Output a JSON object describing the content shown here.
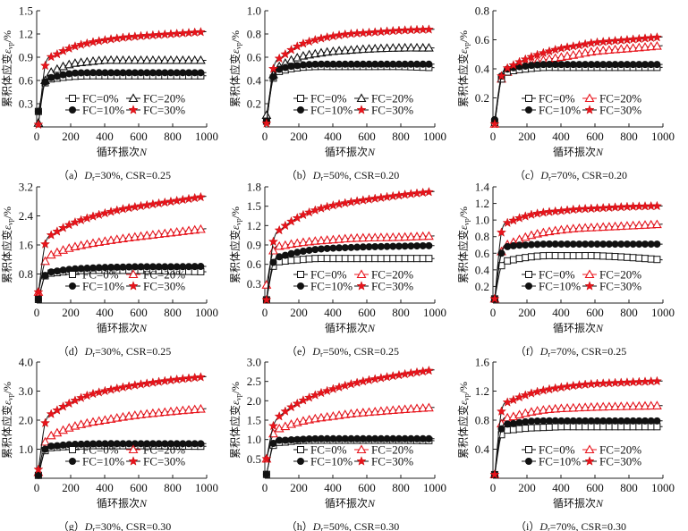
{
  "labels": {
    "ylabel_main": "累积体应变",
    "ylabel_sym": "ε",
    "ylabel_sub": "vp",
    "ylabel_unit": "/%",
    "xlabel_main": "循环振次",
    "xlabel_sym": "N"
  },
  "colors": {
    "line": "#111111",
    "red": "#e8141c",
    "black": "#111111"
  },
  "legend": [
    "FC=0%",
    "FC=10%",
    "FC=20%",
    "FC=30%"
  ],
  "markers": [
    "square-open",
    "circle-filled",
    "triangle-open",
    "star-filled"
  ],
  "chart_data": [
    {
      "type": "line",
      "panel": "a",
      "caption": {
        "letter": "a",
        "dr": "=30%, CSR=0.25"
      },
      "ylim": [
        0,
        1.5
      ],
      "yticks": [
        0.3,
        0.6,
        0.9,
        1.2,
        1.5
      ],
      "xlim": [
        0,
        1000
      ],
      "xticks": [
        0,
        200,
        400,
        600,
        800,
        1000
      ],
      "triangle_color": "black",
      "x": [
        10,
        50,
        100,
        200,
        300,
        400,
        500,
        600,
        800,
        1000
      ],
      "series": [
        {
          "name": "FC=0%",
          "values": [
            0.2,
            0.57,
            0.62,
            0.65,
            0.66,
            0.66,
            0.66,
            0.66,
            0.66,
            0.66
          ]
        },
        {
          "name": "FC=10%",
          "values": [
            0.2,
            0.58,
            0.64,
            0.69,
            0.7,
            0.7,
            0.7,
            0.7,
            0.7,
            0.7
          ]
        },
        {
          "name": "FC=20%",
          "values": [
            0.05,
            0.6,
            0.72,
            0.81,
            0.84,
            0.86,
            0.86,
            0.86,
            0.86,
            0.86
          ]
        },
        {
          "name": "FC=30%",
          "values": [
            0.03,
            0.79,
            0.91,
            1.02,
            1.08,
            1.12,
            1.15,
            1.17,
            1.2,
            1.23
          ]
        }
      ]
    },
    {
      "type": "line",
      "panel": "b",
      "caption": {
        "letter": "b",
        "dr": "=50%, CSR=0.20"
      },
      "ylim": [
        0,
        1.0
      ],
      "yticks": [
        0.2,
        0.4,
        0.6,
        0.8,
        1.0
      ],
      "xlim": [
        0,
        1000
      ],
      "xticks": [
        0,
        200,
        400,
        600,
        800,
        1000
      ],
      "triangle_color": "black",
      "x": [
        10,
        50,
        100,
        200,
        300,
        400,
        500,
        600,
        800,
        1000
      ],
      "series": [
        {
          "name": "FC=0%",
          "values": [
            0.05,
            0.42,
            0.48,
            0.51,
            0.52,
            0.52,
            0.52,
            0.52,
            0.52,
            0.51
          ]
        },
        {
          "name": "FC=10%",
          "values": [
            0.05,
            0.43,
            0.5,
            0.53,
            0.54,
            0.54,
            0.54,
            0.54,
            0.54,
            0.54
          ]
        },
        {
          "name": "FC=20%",
          "values": [
            0.1,
            0.45,
            0.53,
            0.6,
            0.63,
            0.65,
            0.66,
            0.67,
            0.68,
            0.68
          ]
        },
        {
          "name": "FC=30%",
          "values": [
            0.03,
            0.5,
            0.6,
            0.7,
            0.75,
            0.78,
            0.8,
            0.81,
            0.83,
            0.84
          ]
        }
      ]
    },
    {
      "type": "line",
      "panel": "c",
      "caption": {
        "letter": "c",
        "dr": "=70%, CSR=0.20"
      },
      "ylim": [
        0,
        0.8
      ],
      "yticks": [
        0.2,
        0.4,
        0.6,
        0.8
      ],
      "xlim": [
        0,
        1000
      ],
      "xticks": [
        0,
        200,
        400,
        600,
        800,
        1000
      ],
      "triangle_color": "red",
      "x": [
        10,
        50,
        100,
        200,
        300,
        400,
        500,
        600,
        800,
        1000
      ],
      "series": [
        {
          "name": "FC=0%",
          "values": [
            0.03,
            0.33,
            0.38,
            0.4,
            0.41,
            0.41,
            0.41,
            0.41,
            0.41,
            0.41
          ]
        },
        {
          "name": "FC=10%",
          "values": [
            0.05,
            0.35,
            0.4,
            0.42,
            0.43,
            0.43,
            0.43,
            0.43,
            0.43,
            0.43
          ]
        },
        {
          "name": "FC=20%",
          "values": [
            0.02,
            0.33,
            0.38,
            0.43,
            0.46,
            0.48,
            0.5,
            0.52,
            0.54,
            0.56
          ]
        },
        {
          "name": "FC=30%",
          "values": [
            0.02,
            0.35,
            0.41,
            0.47,
            0.51,
            0.54,
            0.56,
            0.58,
            0.6,
            0.62
          ]
        }
      ]
    },
    {
      "type": "line",
      "panel": "d",
      "caption": {
        "letter": "d",
        "dr": "=30%, CSR=0.25"
      },
      "ylim": [
        0,
        3.2
      ],
      "yticks": [
        0.8,
        1.6,
        2.4,
        3.2
      ],
      "xlim": [
        0,
        1000
      ],
      "xticks": [
        0,
        200,
        400,
        600,
        800,
        1000
      ],
      "triangle_color": "red",
      "x": [
        10,
        50,
        100,
        200,
        300,
        400,
        500,
        600,
        800,
        1000
      ],
      "series": [
        {
          "name": "FC=0%",
          "values": [
            0.1,
            0.75,
            0.82,
            0.88,
            0.9,
            0.9,
            0.9,
            0.9,
            0.88,
            0.86
          ]
        },
        {
          "name": "FC=10%",
          "values": [
            0.1,
            0.76,
            0.86,
            0.93,
            0.96,
            0.98,
            0.99,
            1.0,
            1.0,
            1.01
          ]
        },
        {
          "name": "FC=20%",
          "values": [
            0.3,
            1.15,
            1.35,
            1.52,
            1.62,
            1.7,
            1.77,
            1.83,
            1.94,
            2.05
          ]
        },
        {
          "name": "FC=30%",
          "values": [
            0.3,
            1.62,
            1.9,
            2.17,
            2.34,
            2.47,
            2.58,
            2.66,
            2.8,
            2.94
          ]
        }
      ]
    },
    {
      "type": "line",
      "panel": "e",
      "caption": {
        "letter": "e",
        "dr": "=50%, CSR=0.25"
      },
      "ylim": [
        0,
        1.8
      ],
      "yticks": [
        0.3,
        0.6,
        0.9,
        1.2,
        1.5,
        1.8
      ],
      "xlim": [
        0,
        1000
      ],
      "xticks": [
        0,
        200,
        400,
        600,
        800,
        1000
      ],
      "triangle_color": "red",
      "x": [
        10,
        50,
        100,
        200,
        300,
        400,
        500,
        600,
        800,
        1000
      ],
      "series": [
        {
          "name": "FC=0%",
          "values": [
            0.05,
            0.57,
            0.64,
            0.67,
            0.69,
            0.69,
            0.69,
            0.69,
            0.69,
            0.69
          ]
        },
        {
          "name": "FC=10%",
          "values": [
            0.05,
            0.63,
            0.72,
            0.79,
            0.83,
            0.85,
            0.86,
            0.87,
            0.88,
            0.89
          ]
        },
        {
          "name": "FC=20%",
          "values": [
            0.28,
            0.81,
            0.88,
            0.93,
            0.96,
            0.98,
            1.0,
            1.01,
            1.02,
            1.04
          ]
        },
        {
          "name": "FC=30%",
          "values": [
            0.05,
            0.95,
            1.15,
            1.33,
            1.44,
            1.51,
            1.56,
            1.6,
            1.67,
            1.73
          ]
        }
      ]
    },
    {
      "type": "line",
      "panel": "f",
      "caption": {
        "letter": "f",
        "dr": "=70%, CSR=0.25"
      },
      "ylim": [
        0,
        1.4
      ],
      "yticks": [
        0.2,
        0.4,
        0.6,
        0.8,
        1.0,
        1.2,
        1.4
      ],
      "xlim": [
        0,
        1000
      ],
      "xticks": [
        0,
        200,
        400,
        600,
        800,
        1000
      ],
      "triangle_color": "red",
      "x": [
        10,
        50,
        100,
        200,
        300,
        400,
        500,
        600,
        800,
        1000
      ],
      "series": [
        {
          "name": "FC=0%",
          "values": [
            0.05,
            0.45,
            0.51,
            0.55,
            0.57,
            0.57,
            0.57,
            0.57,
            0.55,
            0.52
          ]
        },
        {
          "name": "FC=10%",
          "values": [
            0.05,
            0.6,
            0.68,
            0.7,
            0.71,
            0.71,
            0.71,
            0.71,
            0.71,
            0.71
          ]
        },
        {
          "name": "FC=20%",
          "values": [
            0.05,
            0.62,
            0.71,
            0.8,
            0.85,
            0.88,
            0.9,
            0.91,
            0.93,
            0.95
          ]
        },
        {
          "name": "FC=30%",
          "values": [
            0.05,
            0.85,
            0.97,
            1.05,
            1.09,
            1.11,
            1.13,
            1.14,
            1.16,
            1.17
          ]
        }
      ]
    },
    {
      "type": "line",
      "panel": "g",
      "caption": {
        "letter": "g",
        "dr": "=30%, CSR=0.30"
      },
      "ylim": [
        0,
        4.0
      ],
      "yticks": [
        1.0,
        2.0,
        3.0,
        4.0
      ],
      "xlim": [
        0,
        1000
      ],
      "xticks": [
        0,
        200,
        400,
        600,
        800,
        1000
      ],
      "triangle_color": "red",
      "x": [
        10,
        50,
        100,
        200,
        300,
        400,
        500,
        600,
        800,
        1000
      ],
      "series": [
        {
          "name": "FC=0%",
          "values": [
            0.1,
            0.95,
            1.05,
            1.1,
            1.12,
            1.12,
            1.12,
            1.12,
            1.11,
            1.1
          ]
        },
        {
          "name": "FC=10%",
          "values": [
            0.1,
            1.0,
            1.1,
            1.16,
            1.18,
            1.19,
            1.19,
            1.19,
            1.19,
            1.19
          ]
        },
        {
          "name": "FC=20%",
          "values": [
            0.2,
            1.25,
            1.5,
            1.75,
            1.9,
            2.0,
            2.1,
            2.18,
            2.3,
            2.4
          ]
        },
        {
          "name": "FC=30%",
          "values": [
            0.3,
            1.9,
            2.25,
            2.6,
            2.85,
            3.0,
            3.12,
            3.22,
            3.38,
            3.5
          ]
        }
      ]
    },
    {
      "type": "line",
      "panel": "h",
      "caption": {
        "letter": "h",
        "dr": "=50%, CSR=0.30"
      },
      "ylim": [
        0,
        3.0
      ],
      "yticks": [
        0.5,
        1.0,
        1.5,
        2.0,
        2.5,
        3.0
      ],
      "xlim": [
        0,
        1000
      ],
      "xticks": [
        0,
        200,
        400,
        600,
        800,
        1000
      ],
      "triangle_color": "red",
      "x": [
        10,
        50,
        100,
        200,
        300,
        400,
        500,
        600,
        800,
        1000
      ],
      "series": [
        {
          "name": "FC=0%",
          "values": [
            0.1,
            0.85,
            0.92,
            0.97,
            0.98,
            0.98,
            0.98,
            0.98,
            0.98,
            0.97
          ]
        },
        {
          "name": "FC=10%",
          "values": [
            0.1,
            0.9,
            0.97,
            1.0,
            1.02,
            1.02,
            1.02,
            1.02,
            1.02,
            1.02
          ]
        },
        {
          "name": "FC=20%",
          "values": [
            0.5,
            1.15,
            1.3,
            1.45,
            1.54,
            1.6,
            1.66,
            1.7,
            1.77,
            1.83
          ]
        },
        {
          "name": "FC=30%",
          "values": [
            0.5,
            1.35,
            1.65,
            1.95,
            2.15,
            2.3,
            2.42,
            2.52,
            2.67,
            2.8
          ]
        }
      ]
    },
    {
      "type": "line",
      "panel": "i",
      "caption": {
        "letter": "i",
        "dr": "=70%, CSR=0.30"
      },
      "ylim": [
        0,
        1.6
      ],
      "yticks": [
        0.4,
        0.8,
        1.2,
        1.6
      ],
      "xlim": [
        0,
        1000
      ],
      "xticks": [
        0,
        200,
        400,
        600,
        800,
        1000
      ],
      "triangle_color": "red",
      "x": [
        10,
        50,
        100,
        200,
        300,
        400,
        500,
        600,
        800,
        1000
      ],
      "series": [
        {
          "name": "FC=0%",
          "values": [
            0.05,
            0.6,
            0.66,
            0.69,
            0.7,
            0.71,
            0.71,
            0.71,
            0.71,
            0.71
          ]
        },
        {
          "name": "FC=10%",
          "values": [
            0.05,
            0.68,
            0.74,
            0.78,
            0.79,
            0.79,
            0.79,
            0.79,
            0.79,
            0.79
          ]
        },
        {
          "name": "FC=20%",
          "values": [
            0.05,
            0.75,
            0.83,
            0.9,
            0.94,
            0.96,
            0.97,
            0.98,
            0.99,
            1.0
          ]
        },
        {
          "name": "FC=30%",
          "values": [
            0.05,
            0.92,
            1.05,
            1.15,
            1.21,
            1.25,
            1.28,
            1.3,
            1.32,
            1.34
          ]
        }
      ]
    }
  ]
}
